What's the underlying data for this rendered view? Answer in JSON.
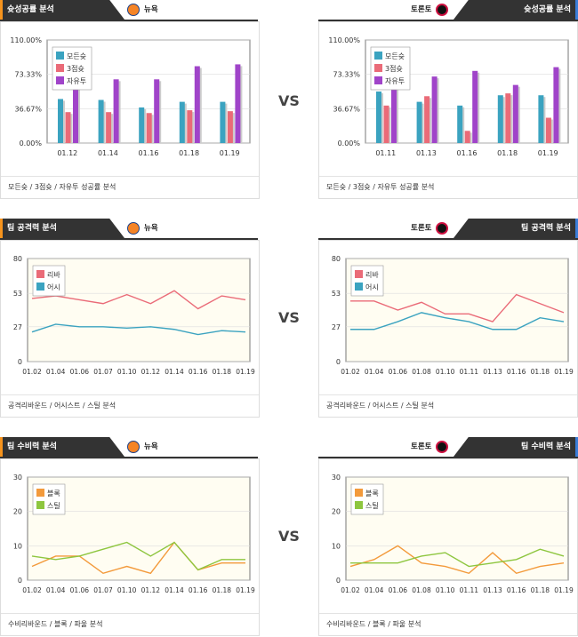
{
  "page": {
    "vs_label": "VS"
  },
  "sections": [
    {
      "key": "shooting",
      "left_title": "슛성공률 분석",
      "right_title": "슛성공률 분석",
      "left_team": "뉴욕",
      "right_team": "토론토",
      "footer": "모든슛 / 3점슛 / 자유투 성공률 분석"
    },
    {
      "key": "offense",
      "left_title": "팀 공격력 분석",
      "right_title": "팀 공격력 분석",
      "left_team": "뉴욕",
      "right_team": "토론토",
      "footer": "공격리바운드 / 어시스트 / 스틸 분석"
    },
    {
      "key": "defense",
      "left_title": "팀 수비력 분석",
      "right_title": "팀 수비력 분석",
      "left_team": "뉴욕",
      "right_team": "토론토",
      "footer": "수비리바운드 / 블록 / 파울 분석"
    }
  ],
  "chart_data": [
    {
      "id": "c1",
      "type": "bar",
      "categories": [
        "01.12",
        "01.14",
        "01.16",
        "01.18",
        "01.19"
      ],
      "ylim": [
        0,
        110
      ],
      "yticks": [
        0,
        36.67,
        73.33,
        110
      ],
      "ytick_labels": [
        "0.00%",
        "36.67%",
        "73.33%",
        "110.00%"
      ],
      "legend_position": "top-left",
      "series": [
        {
          "name": "모든슛",
          "color": "#3ba3c0",
          "values": [
            47,
            46,
            38,
            44,
            44
          ]
        },
        {
          "name": "3점슛",
          "color": "#ea6b78",
          "values": [
            33,
            33,
            32,
            35,
            34
          ]
        },
        {
          "name": "자유투",
          "color": "#a044c9",
          "values": [
            84,
            68,
            68,
            82,
            84
          ]
        }
      ]
    },
    {
      "id": "c2",
      "type": "bar",
      "categories": [
        "01.11",
        "01.13",
        "01.16",
        "01.18",
        "01.19"
      ],
      "ylim": [
        0,
        110
      ],
      "yticks": [
        0,
        36.67,
        73.33,
        110
      ],
      "ytick_labels": [
        "0.00%",
        "36.67%",
        "73.33%",
        "110.00%"
      ],
      "legend_position": "top-left",
      "series": [
        {
          "name": "모든슛",
          "color": "#3ba3c0",
          "values": [
            55,
            44,
            40,
            51,
            51
          ]
        },
        {
          "name": "3점슛",
          "color": "#ea6b78",
          "values": [
            40,
            50,
            13,
            53,
            27
          ]
        },
        {
          "name": "자유투",
          "color": "#a044c9",
          "values": [
            86,
            71,
            77,
            62,
            81
          ]
        }
      ]
    },
    {
      "id": "c3",
      "type": "line",
      "x": [
        "01.02",
        "01.04",
        "01.06",
        "01.07",
        "01.10",
        "01.12",
        "01.14",
        "01.16",
        "01.18",
        "01.19"
      ],
      "ylim": [
        0,
        80
      ],
      "yticks": [
        0,
        27,
        53,
        80
      ],
      "legend_position": "top-left",
      "series": [
        {
          "name": "리바",
          "color": "#ea6b78",
          "values": [
            49,
            51,
            48,
            45,
            52,
            45,
            55,
            41,
            51,
            48
          ]
        },
        {
          "name": "어시",
          "color": "#3ba3c0",
          "values": [
            23,
            29,
            27,
            27,
            26,
            27,
            25,
            21,
            24,
            23
          ]
        }
      ]
    },
    {
      "id": "c4",
      "type": "line",
      "x": [
        "01.02",
        "01.04",
        "01.06",
        "01.08",
        "01.10",
        "01.11",
        "01.13",
        "01.16",
        "01.18",
        "01.19"
      ],
      "ylim": [
        0,
        80
      ],
      "yticks": [
        0,
        27,
        53,
        80
      ],
      "legend_position": "top-left",
      "series": [
        {
          "name": "리바",
          "color": "#ea6b78",
          "values": [
            47,
            47,
            40,
            46,
            37,
            37,
            31,
            52,
            45,
            38
          ]
        },
        {
          "name": "어시",
          "color": "#3ba3c0",
          "values": [
            25,
            25,
            31,
            38,
            34,
            31,
            25,
            25,
            34,
            31
          ]
        }
      ]
    },
    {
      "id": "c5",
      "type": "line",
      "x": [
        "01.02",
        "01.04",
        "01.06",
        "01.07",
        "01.10",
        "01.12",
        "01.14",
        "01.16",
        "01.18",
        "01.19"
      ],
      "ylim": [
        0,
        30
      ],
      "yticks": [
        0,
        10,
        20,
        30
      ],
      "legend_position": "top-left",
      "series": [
        {
          "name": "블록",
          "color": "#f39a3b",
          "values": [
            4,
            7,
            7,
            2,
            4,
            2,
            11,
            3,
            5,
            5
          ]
        },
        {
          "name": "스틸",
          "color": "#8ec63f",
          "values": [
            7,
            6,
            7,
            9,
            11,
            7,
            11,
            3,
            6,
            6
          ]
        }
      ]
    },
    {
      "id": "c6",
      "type": "line",
      "x": [
        "01.02",
        "01.04",
        "01.06",
        "01.08",
        "01.10",
        "01.11",
        "01.13",
        "01.16",
        "01.18",
        "01.19"
      ],
      "ylim": [
        0,
        30
      ],
      "yticks": [
        0,
        10,
        20,
        30
      ],
      "legend_position": "top-left",
      "series": [
        {
          "name": "블록",
          "color": "#f39a3b",
          "values": [
            4,
            6,
            10,
            5,
            4,
            2,
            8,
            2,
            4,
            5
          ]
        },
        {
          "name": "스틸",
          "color": "#8ec63f",
          "values": [
            5,
            5,
            5,
            7,
            8,
            4,
            5,
            6,
            9,
            7
          ]
        }
      ]
    }
  ]
}
